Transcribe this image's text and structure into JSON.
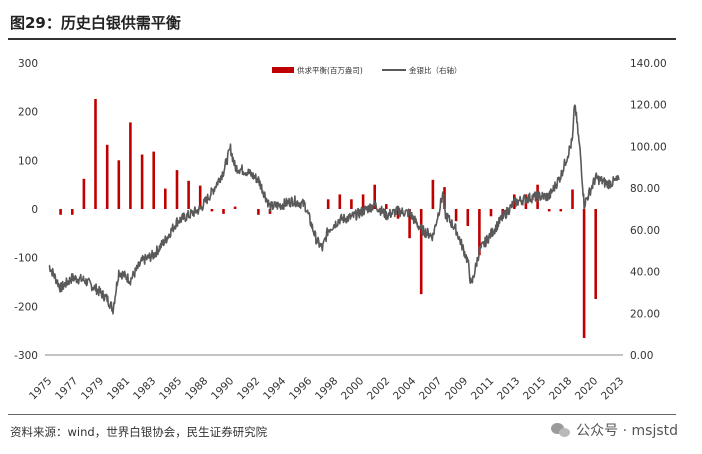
{
  "title": "图29：历史白银供需平衡",
  "source": "资料来源：wind，世界白银协会，民生证券研究院",
  "watermark": "公众号 · msjstd",
  "chart_data": {
    "type": "bar+line",
    "x_ticks": [
      "1975",
      "1977",
      "1979",
      "1981",
      "1983",
      "1985",
      "1988",
      "1990",
      "1992",
      "1994",
      "1996",
      "1998",
      "2000",
      "2002",
      "2004",
      "2007",
      "2009",
      "2011",
      "2013",
      "2015",
      "2018",
      "2020",
      "2023"
    ],
    "y_left": {
      "ticks": [
        "300",
        "200",
        "100",
        "0",
        "-100",
        "-200",
        "-300"
      ],
      "lim": [
        -300,
        300
      ]
    },
    "y_right": {
      "ticks": [
        "140.00",
        "120.00",
        "100.00",
        "80.00",
        "60.00",
        "40.00",
        "20.00",
        "0.00"
      ],
      "lim": [
        0,
        140
      ]
    },
    "legend": {
      "position": "top-center",
      "bar_label": "供求平衡(百万盎司)",
      "line_label": "金银比（右轴）"
    },
    "colors": {
      "bar": "#c00000",
      "line": "#595959"
    },
    "bar_series": {
      "name": "供求平衡(百万盎司)",
      "x": [
        1976,
        1977,
        1978,
        1979,
        1980,
        1981,
        1982,
        1983,
        1984,
        1985,
        1986,
        1987,
        1988,
        1989,
        1990,
        1991,
        1992,
        1993,
        1994,
        1995,
        1996,
        1997,
        1998,
        1999,
        2000,
        2001,
        2002,
        2003,
        2004,
        2005,
        2006,
        2007,
        2008,
        2009,
        2010,
        2011,
        2012,
        2013,
        2014,
        2015,
        2016,
        2017,
        2018,
        2019,
        2020,
        2021,
        2022,
        2023
      ],
      "values": [
        -12,
        -12,
        62,
        226,
        132,
        100,
        178,
        112,
        118,
        42,
        80,
        58,
        48,
        -5,
        -10,
        5,
        0,
        -12,
        -10,
        0,
        0,
        0,
        0,
        20,
        30,
        20,
        30,
        50,
        10,
        -20,
        -60,
        -175,
        60,
        45,
        -25,
        -35,
        -95,
        -15,
        -20,
        30,
        30,
        50,
        -5,
        -5,
        40,
        -265,
        -185,
        0
      ]
    },
    "line_series": {
      "name": "金银比（右轴）",
      "x": [
        1975,
        1976,
        1977,
        1978,
        1979,
        1980,
        1980.5,
        1981,
        1982,
        1983,
        1984,
        1985,
        1986,
        1987,
        1988,
        1989,
        1990,
        1990.6,
        1991,
        1992,
        1993,
        1994,
        1995,
        1996,
        1997,
        1998,
        1998.5,
        1999,
        2000,
        2001,
        2002,
        2003,
        2004,
        2005,
        2006,
        2007,
        2008,
        2008.9,
        2009,
        2010,
        2011,
        2011.3,
        2012,
        2013,
        2014,
        2015,
        2016,
        2017,
        2018,
        2019,
        2020,
        2020.2,
        2020.7,
        2021,
        2022,
        2023,
        2024
      ],
      "values": [
        43,
        32,
        37,
        36,
        32,
        27,
        22,
        40,
        36,
        45,
        48,
        55,
        64,
        67,
        70,
        78,
        88,
        99,
        90,
        88,
        84,
        71,
        72,
        74,
        72,
        55,
        51,
        60,
        65,
        66,
        69,
        72,
        67,
        69,
        68,
        60,
        57,
        78,
        68,
        60,
        45,
        33,
        50,
        58,
        66,
        73,
        75,
        76,
        76,
        86,
        103,
        121,
        95,
        72,
        85,
        82,
        84
      ]
    }
  }
}
